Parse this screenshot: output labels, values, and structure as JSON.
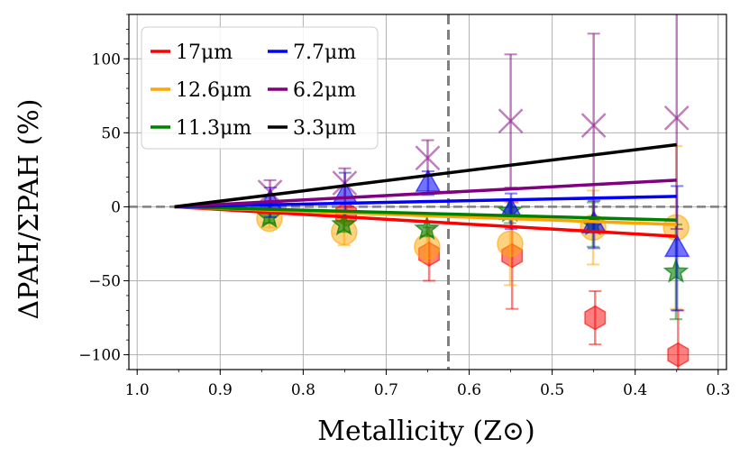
{
  "chart_data": {
    "type": "scatter",
    "xlabel": "Metallicity (Z⊙)",
    "ylabel": "ΔPAH/ΣPAH (%)",
    "xlim": [
      1.01,
      0.29
    ],
    "ylim": [
      -110,
      130
    ],
    "x_ticks": [
      1.0,
      0.9,
      0.8,
      0.7,
      0.6,
      0.5,
      0.4,
      0.3
    ],
    "x_tick_labels": [
      "1.0",
      "0.9",
      "0.8",
      "0.7",
      "0.6",
      "0.5",
      "0.4",
      "0.3"
    ],
    "y_ticks": [
      -100,
      -50,
      0,
      50,
      100
    ],
    "y_tick_labels": [
      "−100",
      "−50",
      "0",
      "50",
      "100"
    ],
    "grid": true,
    "reference_lines": {
      "horizontal_y": 0,
      "vertical_x": 0.625
    },
    "legend_position": "top-left",
    "series": [
      {
        "name": "17μm",
        "color": "#ff0000",
        "marker": "hexagon",
        "points": [
          {
            "x": 0.75,
            "y": -5,
            "err": 5
          },
          {
            "x": 0.65,
            "y": -32,
            "err": 18
          },
          {
            "x": 0.55,
            "y": -33,
            "err": 36
          },
          {
            "x": 0.45,
            "y": -75,
            "err": 18
          },
          {
            "x": 0.35,
            "y": -100,
            "err": 30
          }
        ],
        "trend": {
          "x": [
            0.955,
            0.35
          ],
          "y": [
            0,
            -20
          ]
        }
      },
      {
        "name": "12.6μm",
        "color": "#ffa500",
        "marker": "circle",
        "points": [
          {
            "x": 0.84,
            "y": -8,
            "err": 6
          },
          {
            "x": 0.75,
            "y": -17,
            "err": 9
          },
          {
            "x": 0.65,
            "y": -27,
            "err": 10
          },
          {
            "x": 0.55,
            "y": -25,
            "err": 28
          },
          {
            "x": 0.45,
            "y": -14,
            "err": 25
          },
          {
            "x": 0.35,
            "y": -14,
            "err": 55
          }
        ],
        "trend": {
          "x": [
            0.955,
            0.35
          ],
          "y": [
            0,
            -12
          ]
        }
      },
      {
        "name": "11.3μm",
        "color": "#008000",
        "marker": "star",
        "points": [
          {
            "x": 0.84,
            "y": -7,
            "err": 4
          },
          {
            "x": 0.75,
            "y": -12,
            "err": 5
          },
          {
            "x": 0.65,
            "y": -15,
            "err": 5
          },
          {
            "x": 0.55,
            "y": -3,
            "err": 8
          },
          {
            "x": 0.45,
            "y": -12,
            "err": 15
          },
          {
            "x": 0.35,
            "y": -44,
            "err": 32
          }
        ],
        "trend": {
          "x": [
            0.955,
            0.35
          ],
          "y": [
            0,
            -9
          ]
        }
      },
      {
        "name": "7.7μm",
        "color": "#0000ff",
        "marker": "triangle",
        "points": [
          {
            "x": 0.84,
            "y": 3,
            "err": 10
          },
          {
            "x": 0.75,
            "y": 8,
            "err": 15
          },
          {
            "x": 0.65,
            "y": 16,
            "err": 8
          },
          {
            "x": 0.55,
            "y": -3,
            "err": 12
          },
          {
            "x": 0.45,
            "y": -12,
            "err": 16
          },
          {
            "x": 0.35,
            "y": -28,
            "err": 42
          }
        ],
        "trend": {
          "x": [
            0.955,
            0.35
          ],
          "y": [
            0,
            7
          ]
        }
      },
      {
        "name": "6.2μm",
        "color": "#800080",
        "marker": "x",
        "points": [
          {
            "x": 0.84,
            "y": 10,
            "err": 8
          },
          {
            "x": 0.75,
            "y": 16,
            "err": 10
          },
          {
            "x": 0.65,
            "y": 33,
            "err": 12
          },
          {
            "x": 0.55,
            "y": 58,
            "err": 45
          },
          {
            "x": 0.45,
            "y": 55,
            "err": 62
          },
          {
            "x": 0.35,
            "y": 60,
            "err": 75
          }
        ],
        "trend": {
          "x": [
            0.955,
            0.35
          ],
          "y": [
            0,
            18
          ]
        }
      },
      {
        "name": "3.3μm",
        "color": "#000000",
        "marker": "none",
        "points": [],
        "trend": {
          "x": [
            0.955,
            0.35
          ],
          "y": [
            0,
            42
          ]
        }
      }
    ]
  }
}
